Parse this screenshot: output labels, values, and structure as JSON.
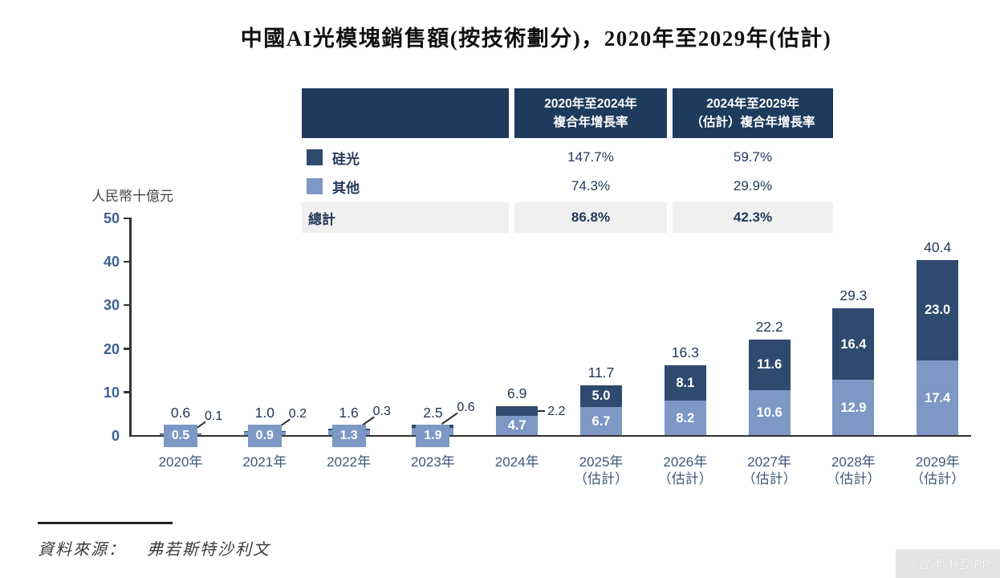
{
  "title": "中國AI光模塊銷售額(按技術劃分)，2020年至2029年(估計)",
  "unit_label": "人民幣十億元",
  "cagr_table": {
    "columns": [
      {
        "lines": [
          "2020年至2024年",
          "複合年增長率"
        ]
      },
      {
        "lines": [
          "2024年至2029年",
          "（估計）複合年增長率"
        ]
      }
    ],
    "rows": [
      {
        "label": "硅光",
        "values": [
          "147.7%",
          "59.7%"
        ]
      },
      {
        "label": "其他",
        "values": [
          "74.3%",
          "29.9%"
        ]
      },
      {
        "label": "總計",
        "values": [
          "86.8%",
          "42.3%"
        ]
      }
    ]
  },
  "chart_data": {
    "type": "bar",
    "stacked": true,
    "title": "中國AI光模塊銷售額(按技術劃分)，2020年至2029年(估計)",
    "ylabel": "人民幣十億元",
    "xlabel": "",
    "ylim": [
      0,
      50
    ],
    "yticks": [
      0,
      10,
      20,
      30,
      40,
      50
    ],
    "grid": false,
    "legend_position": "table-top",
    "categories": [
      [
        "2020年"
      ],
      [
        "2021年"
      ],
      [
        "2022年"
      ],
      [
        "2023年"
      ],
      [
        "2024年"
      ],
      [
        "2025年",
        "（估計）"
      ],
      [
        "2026年",
        "（估計）"
      ],
      [
        "2027年",
        "（估計）"
      ],
      [
        "2028年",
        "（估計）"
      ],
      [
        "2029年",
        "（估計）"
      ]
    ],
    "series": [
      {
        "name": "硅光",
        "color": "#2e4a6e",
        "values": [
          0.1,
          0.2,
          0.3,
          0.6,
          2.2,
          5.0,
          8.1,
          11.6,
          16.4,
          23.0
        ]
      },
      {
        "name": "其他",
        "color": "#7d98c4",
        "values": [
          0.5,
          0.9,
          1.3,
          1.9,
          4.7,
          6.7,
          8.2,
          10.6,
          12.9,
          17.4
        ]
      }
    ],
    "totals": [
      0.6,
      1.0,
      1.6,
      2.5,
      6.9,
      11.7,
      16.3,
      22.2,
      29.3,
      40.4
    ],
    "label_modes": [
      "chip",
      "chip",
      "chip",
      "chip",
      "side",
      "inside",
      "inside",
      "inside",
      "inside",
      "inside"
    ]
  },
  "source": {
    "label": "資料來源：",
    "value": "弗若斯特沙利文"
  },
  "watermark": "@智通财经APP",
  "colors": {
    "silicon": "#2e4a6e",
    "other": "#7d98c4",
    "table_header_bg": "#1e3a5c",
    "total_row_bg": "#f0f0f0",
    "navy_text": "#24395a",
    "axis": "#333333"
  }
}
